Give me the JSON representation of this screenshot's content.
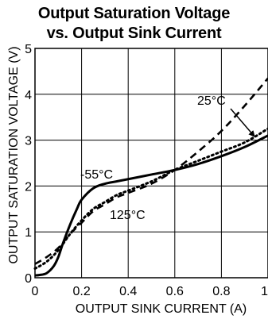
{
  "chart_data": {
    "type": "line",
    "title": "Output Saturation Voltage",
    "subtitle": "vs. Output Sink Current",
    "xlabel": "OUTPUT SINK CURRENT (A)",
    "ylabel": "OUTPUT SATURATION VOLTAGE (V)",
    "xlim": [
      0,
      1
    ],
    "ylim": [
      0,
      5
    ],
    "x_ticks": [
      "0",
      "0.2",
      "0.4",
      "0.6",
      "0.8",
      "1"
    ],
    "y_ticks": [
      "0",
      "1",
      "2",
      "3",
      "4",
      "5"
    ],
    "grid": true,
    "series": [
      {
        "name": "-55°C",
        "style": "solid",
        "x": [
          0,
          0.02,
          0.05,
          0.08,
          0.1,
          0.12,
          0.15,
          0.18,
          0.2,
          0.25,
          0.3,
          0.35,
          0.4,
          0.5,
          0.6,
          0.7,
          0.8,
          0.9,
          1.0
        ],
        "y": [
          0.05,
          0.06,
          0.1,
          0.25,
          0.45,
          0.75,
          1.15,
          1.5,
          1.7,
          1.95,
          2.05,
          2.1,
          2.15,
          2.25,
          2.35,
          2.48,
          2.65,
          2.85,
          3.1
        ]
      },
      {
        "name": "125°C",
        "style": "dotted",
        "x": [
          0,
          0.05,
          0.1,
          0.15,
          0.2,
          0.25,
          0.3,
          0.35,
          0.4,
          0.5,
          0.6,
          0.7,
          0.8,
          0.9,
          1.0
        ],
        "y": [
          0.2,
          0.35,
          0.6,
          0.95,
          1.25,
          1.5,
          1.65,
          1.8,
          1.9,
          2.1,
          2.35,
          2.55,
          2.75,
          2.95,
          3.25
        ]
      },
      {
        "name": "25°C",
        "style": "dashed",
        "x": [
          0,
          0.05,
          0.1,
          0.15,
          0.2,
          0.25,
          0.3,
          0.35,
          0.4,
          0.5,
          0.6,
          0.7,
          0.8,
          0.9,
          1.0
        ],
        "y": [
          0.3,
          0.45,
          0.65,
          0.95,
          1.2,
          1.45,
          1.6,
          1.75,
          1.85,
          2.05,
          2.35,
          2.75,
          3.2,
          3.75,
          4.35
        ]
      }
    ],
    "annotations": [
      {
        "text": "25°C",
        "series": "25°C"
      },
      {
        "text": "-55°C",
        "series": "-55°C"
      },
      {
        "text": "125°C",
        "series": "125°C"
      }
    ]
  }
}
